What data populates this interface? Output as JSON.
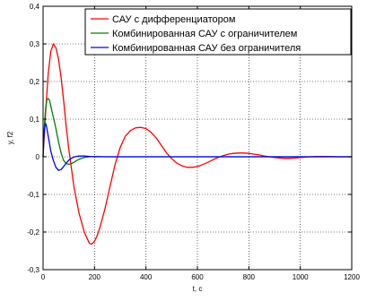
{
  "chart_data": {
    "type": "line",
    "title": "",
    "xlabel": "t, c",
    "ylabel": "y, f2",
    "xlim": [
      0,
      1200
    ],
    "ylim": [
      -0.3,
      0.4
    ],
    "grid": true,
    "legend_position": "top-right",
    "xticks": [
      0,
      200,
      400,
      600,
      800,
      1000,
      1200
    ],
    "xtick_labels": [
      "0",
      "200",
      "400",
      "600",
      "800",
      "1000",
      "1200"
    ],
    "yticks": [
      -0.3,
      -0.2,
      -0.1,
      0,
      0.1,
      0.2,
      0.3,
      0.4
    ],
    "ytick_labels": [
      "-0,3",
      "-0,2",
      "-0,1",
      "0",
      "0,1",
      "0,2",
      "0,3",
      "0,4"
    ],
    "series": [
      {
        "name": "САУ с дифференциатором",
        "color": "#ff0000",
        "x": [
          0,
          10,
          20,
          30,
          40,
          50,
          60,
          70,
          80,
          90,
          100,
          120,
          140,
          160,
          180,
          190,
          200,
          210,
          220,
          240,
          260,
          280,
          300,
          320,
          340,
          360,
          380,
          400,
          420,
          440,
          460,
          480,
          500,
          520,
          540,
          560,
          580,
          600,
          620,
          640,
          660,
          680,
          700,
          720,
          740,
          760,
          780,
          800,
          820,
          840,
          860,
          880,
          900,
          920,
          940,
          960,
          980,
          1000,
          1020,
          1040,
          1060,
          1080,
          1100,
          1150,
          1200
        ],
        "y": [
          0,
          0.12,
          0.22,
          0.28,
          0.3,
          0.29,
          0.26,
          0.21,
          0.15,
          0.08,
          0.02,
          -0.08,
          -0.15,
          -0.2,
          -0.23,
          -0.232,
          -0.225,
          -0.21,
          -0.19,
          -0.14,
          -0.08,
          -0.02,
          0.025,
          0.055,
          0.07,
          0.077,
          0.078,
          0.075,
          0.065,
          0.05,
          0.03,
          0.01,
          -0.005,
          -0.017,
          -0.024,
          -0.028,
          -0.028,
          -0.026,
          -0.021,
          -0.015,
          -0.008,
          -0.002,
          0.003,
          0.007,
          0.009,
          0.01,
          0.01,
          0.009,
          0.007,
          0.005,
          0.002,
          0,
          -0.002,
          -0.003,
          -0.004,
          -0.004,
          -0.003,
          -0.002,
          -0.001,
          0,
          0.001,
          0.001,
          0.001,
          0,
          0
        ]
      },
      {
        "name": "Комбинированная САУ с ограничителем",
        "color": "#008000",
        "x": [
          0,
          5,
          10,
          15,
          20,
          25,
          30,
          35,
          40,
          45,
          50,
          60,
          70,
          80,
          90,
          100,
          110,
          120,
          130,
          140,
          150,
          160,
          180,
          200,
          250,
          1200
        ],
        "y": [
          0,
          0.08,
          0.13,
          0.152,
          0.155,
          0.15,
          0.135,
          0.12,
          0.105,
          0.09,
          0.075,
          0.04,
          0.01,
          -0.01,
          -0.018,
          -0.02,
          -0.018,
          -0.015,
          -0.01,
          -0.007,
          -0.004,
          -0.002,
          0,
          0.001,
          0,
          0
        ]
      },
      {
        "name": "Комбинированная САУ без ограничителя",
        "color": "#0000ff",
        "x": [
          0,
          2,
          5,
          8,
          10,
          12,
          15,
          20,
          25,
          30,
          40,
          50,
          60,
          70,
          80,
          90,
          100,
          110,
          120,
          130,
          140,
          160,
          180,
          200,
          1200
        ],
        "y": [
          0,
          0.04,
          0.07,
          0.085,
          0.088,
          0.085,
          0.075,
          0.055,
          0.035,
          0.015,
          -0.01,
          -0.028,
          -0.036,
          -0.034,
          -0.026,
          -0.017,
          -0.009,
          -0.004,
          -0.001,
          0.001,
          0.002,
          0.002,
          0.001,
          0,
          0
        ]
      }
    ]
  }
}
